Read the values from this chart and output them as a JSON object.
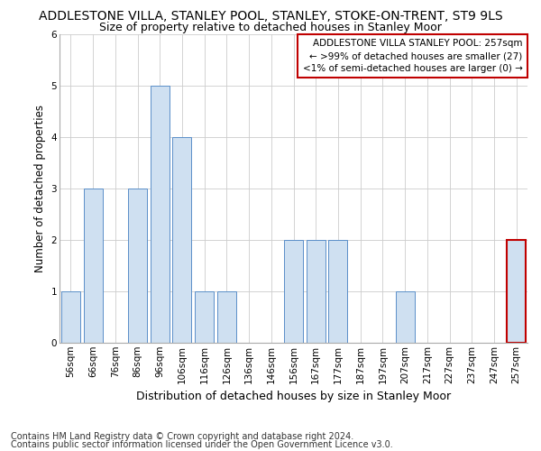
{
  "title": "ADDLESTONE VILLA, STANLEY POOL, STANLEY, STOKE-ON-TRENT, ST9 9LS",
  "subtitle": "Size of property relative to detached houses in Stanley Moor",
  "xlabel": "Distribution of detached houses by size in Stanley Moor",
  "ylabel": "Number of detached properties",
  "categories": [
    "56sqm",
    "66sqm",
    "76sqm",
    "86sqm",
    "96sqm",
    "106sqm",
    "116sqm",
    "126sqm",
    "136sqm",
    "146sqm",
    "156sqm",
    "167sqm",
    "177sqm",
    "187sqm",
    "197sqm",
    "207sqm",
    "217sqm",
    "227sqm",
    "237sqm",
    "247sqm",
    "257sqm"
  ],
  "values": [
    1,
    3,
    0,
    3,
    5,
    4,
    1,
    1,
    0,
    0,
    2,
    2,
    2,
    0,
    0,
    1,
    0,
    0,
    0,
    0,
    2
  ],
  "bar_color": "#cfe0f1",
  "bar_edge_color": "#5b8fc9",
  "highlight_bar_index": 20,
  "highlight_bar_edge_color": "#c00000",
  "ylim": [
    0,
    6
  ],
  "yticks": [
    0,
    1,
    2,
    3,
    4,
    5,
    6
  ],
  "annotation_text": "ADDLESTONE VILLA STANLEY POOL: 257sqm\n← >99% of detached houses are smaller (27)\n<1% of semi-detached houses are larger (0) →",
  "annotation_box_edge_color": "#c00000",
  "footnote1": "Contains HM Land Registry data © Crown copyright and database right 2024.",
  "footnote2": "Contains public sector information licensed under the Open Government Licence v3.0.",
  "title_fontsize": 10,
  "subtitle_fontsize": 9,
  "xlabel_fontsize": 9,
  "ylabel_fontsize": 8.5,
  "tick_fontsize": 7.5,
  "annotation_fontsize": 7.5,
  "footnote_fontsize": 7,
  "grid_color": "#cccccc",
  "background_color": "#ffffff"
}
